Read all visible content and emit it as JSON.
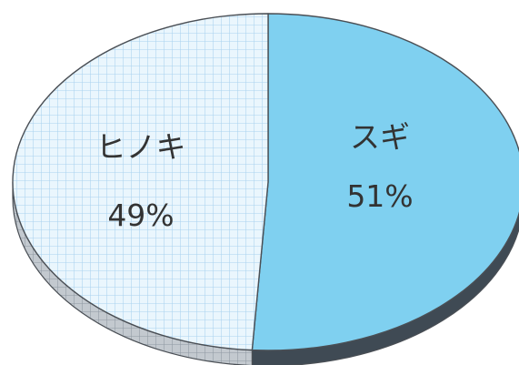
{
  "chart_data": {
    "type": "pie",
    "title": "",
    "categories": [
      "スギ",
      "ヒノキ"
    ],
    "values": [
      51,
      49
    ],
    "unit": "%",
    "percent_labels": [
      "51%",
      "49%"
    ],
    "colors": {
      "スギ": "#7fd0f0",
      "ヒノキ": "#eaf6fd",
      "grid_line": "#a9d2ef",
      "edge_stroke": "#4a4f55"
    },
    "style": "3d",
    "legend": "none"
  }
}
